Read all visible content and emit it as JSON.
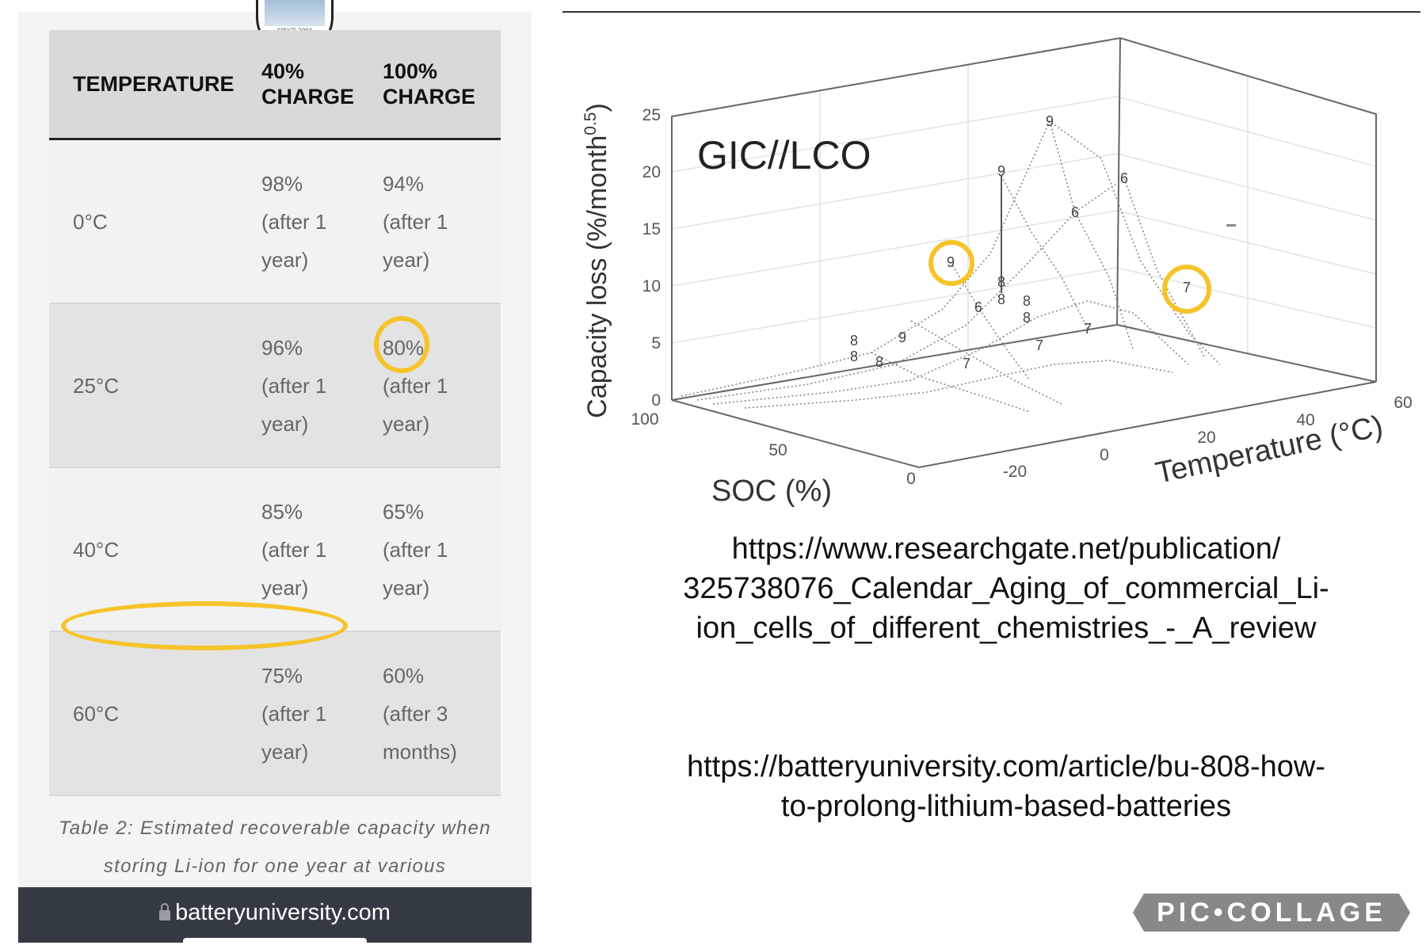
{
  "left_panel": {
    "logo_text": "SINCE 2003",
    "table": {
      "headers": [
        "TEMPERATURE",
        "40%",
        "CHARGE",
        "100%",
        "CHARGE"
      ],
      "rows": [
        {
          "temp": "0°C",
          "c40": [
            "98%",
            "(after 1",
            "year)"
          ],
          "c100": [
            "94%",
            "(after 1",
            "year)"
          ]
        },
        {
          "temp": "25°C",
          "c40": [
            "96%",
            "(after 1",
            "year)"
          ],
          "c100": [
            "80%",
            "(after 1",
            "year)"
          ]
        },
        {
          "temp": "40°C",
          "c40": [
            "85%",
            "(after 1",
            "year)"
          ],
          "c100": [
            "65%",
            "(after 1",
            "year)"
          ]
        },
        {
          "temp": "60°C",
          "c40": [
            "75%",
            "(after 1",
            "year)"
          ],
          "c100": [
            "60%",
            "(after 3",
            "months)"
          ]
        }
      ]
    },
    "caption": [
      "Table 2: Estimated recoverable capacity when",
      "storing Li-ion for one year at various"
    ],
    "address_bar": "batteryuniversity.com"
  },
  "highlight_color": "#f6c32b",
  "chart_data": {
    "type": "surface3d",
    "title": "GIC//LCO",
    "zlabel": "Capacity loss (%/month^0.5)",
    "zlabel_main": "Capacity loss (%/month",
    "zlabel_sup": "0.5",
    "zlabel_end": ")",
    "xlabel": "SOC (%)",
    "ylabel": "Temperature (°C)",
    "z_ticks": [
      "0",
      "5",
      "10",
      "15",
      "20",
      "25"
    ],
    "soc_ticks": [
      "100",
      "50",
      "0"
    ],
    "temp_ticks": [
      "-20",
      "0",
      "20",
      "40",
      "60"
    ],
    "zlim": [
      0,
      25
    ],
    "point_labels": [
      "9",
      "9",
      "6",
      "6",
      "9",
      "8",
      "8",
      "6",
      "8",
      "8",
      "7",
      "7",
      "9",
      "8",
      "8",
      "8",
      "7",
      "7"
    ]
  },
  "urls": {
    "researchgate": [
      "https://www.researchgate.net/publication/",
      "325738076_Calendar_Aging_of_commercial_Li-",
      "ion_cells_of_different_chemistries_-_A_review"
    ],
    "batteryuniversity": [
      "https://batteryuniversity.com/article/bu-808-how-",
      "to-prolong-lithium-based-batteries"
    ]
  },
  "watermark": "PIC•COLLAGE"
}
